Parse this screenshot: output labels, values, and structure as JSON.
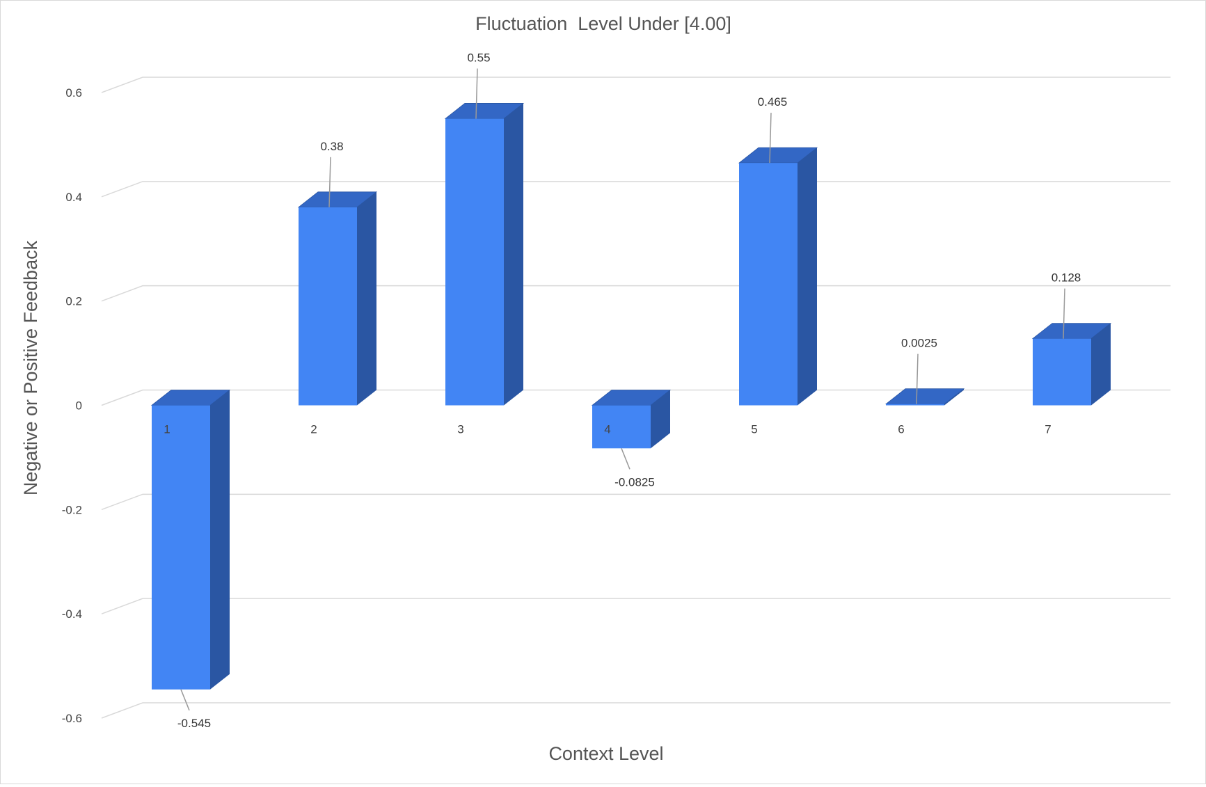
{
  "chart_data": {
    "type": "bar",
    "title": "Fluctuation  Level Under [4.00]",
    "xlabel": "Context Level",
    "ylabel": "Negative or Positive Feedback",
    "categories": [
      "1",
      "2",
      "3",
      "4",
      "5",
      "6",
      "7"
    ],
    "series": [
      {
        "values": [
          -0.545,
          0.38,
          0.55,
          -0.0825,
          0.465,
          0.0025,
          0.128
        ],
        "data_labels": [
          "-0.545",
          "0.38",
          "0.55",
          "-0.0825",
          "0.465",
          "0.0025",
          "0.128"
        ]
      }
    ],
    "ylim": [
      -0.6,
      0.6
    ],
    "yticks": [
      "-0.6",
      "-0.4",
      "-0.2",
      "0",
      "0.2",
      "0.4",
      "0.6"
    ],
    "grid": true,
    "style": "3d",
    "colors": {
      "bar_front": "#4285f4",
      "bar_side": "#2a56a3",
      "bar_top": "#3367c5",
      "grid": "#d9d9d9",
      "leader": "#999999"
    }
  }
}
